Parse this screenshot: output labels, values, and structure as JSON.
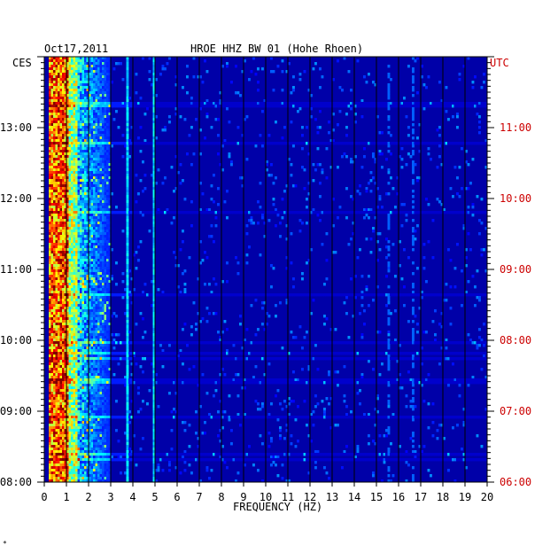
{
  "header": {
    "date": "Oct17,2011",
    "station": "HROE HHZ BW 01 (Hohe Rhoen)"
  },
  "left_axis_label": "CES",
  "right_axis_label": "UTC",
  "footer_mark": "*",
  "colors": {
    "background": "#0000a8",
    "local_time_text": "#000000",
    "utc_text": "#cc0000",
    "gridline": "#000000"
  },
  "chart_data": {
    "type": "heatmap",
    "title": "HROE HHZ BW 01 (Hohe Rhoen)",
    "xlabel": "FREQUENCY (HZ)",
    "xlim": [
      0,
      20
    ],
    "x_ticks": [
      "0",
      "1",
      "2",
      "3",
      "4",
      "5",
      "6",
      "7",
      "8",
      "9",
      "10",
      "11",
      "12",
      "13",
      "14",
      "15",
      "16",
      "17",
      "18",
      "19",
      "20"
    ],
    "y_left_label": "CES",
    "y_right_label": "UTC",
    "ylim_local": [
      "08:00",
      "14:00"
    ],
    "y_ticks_local": [
      "08:00",
      "09:00",
      "10:00",
      "11:00",
      "12:00",
      "13:00"
    ],
    "y_ticks_utc": [
      "06:00",
      "07:00",
      "08:00",
      "09:00",
      "10:00",
      "11:00"
    ],
    "colormap": "jet",
    "features": [
      {
        "name": "broadband low-frequency energy",
        "freq_range_hz": [
          0.2,
          1.0
        ],
        "intensity": "very high"
      },
      {
        "name": "secondary microseism band",
        "freq_range_hz": [
          1.0,
          3.0
        ],
        "intensity": "medium"
      },
      {
        "name": "persistent line",
        "freq_hz": 3.7,
        "intensity": "medium"
      },
      {
        "name": "persistent line",
        "freq_hz": 4.9,
        "intensity": "medium"
      },
      {
        "name": "intermittent line",
        "freq_hz": 15.5,
        "intensity": "low"
      },
      {
        "name": "intermittent line",
        "freq_hz": 16.6,
        "intensity": "low"
      }
    ]
  }
}
